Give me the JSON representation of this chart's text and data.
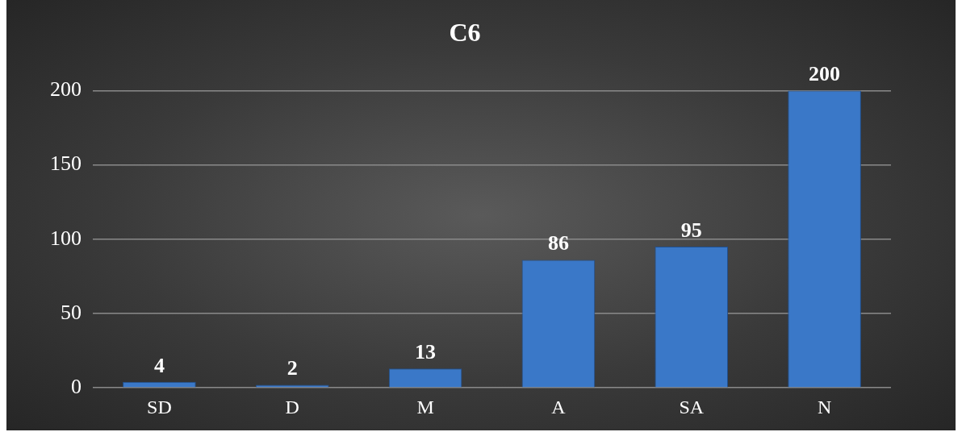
{
  "chart_data": {
    "type": "bar",
    "title": "C6",
    "categories": [
      "SD",
      "D",
      "M",
      "A",
      "SA",
      "N"
    ],
    "values": [
      4,
      2,
      13,
      86,
      95,
      200
    ],
    "color": "#3a78c8",
    "ylim": [
      0,
      200
    ],
    "yticks": [
      0,
      50,
      100,
      150,
      200
    ],
    "grid": "y",
    "data_labels": true,
    "legend": false
  }
}
